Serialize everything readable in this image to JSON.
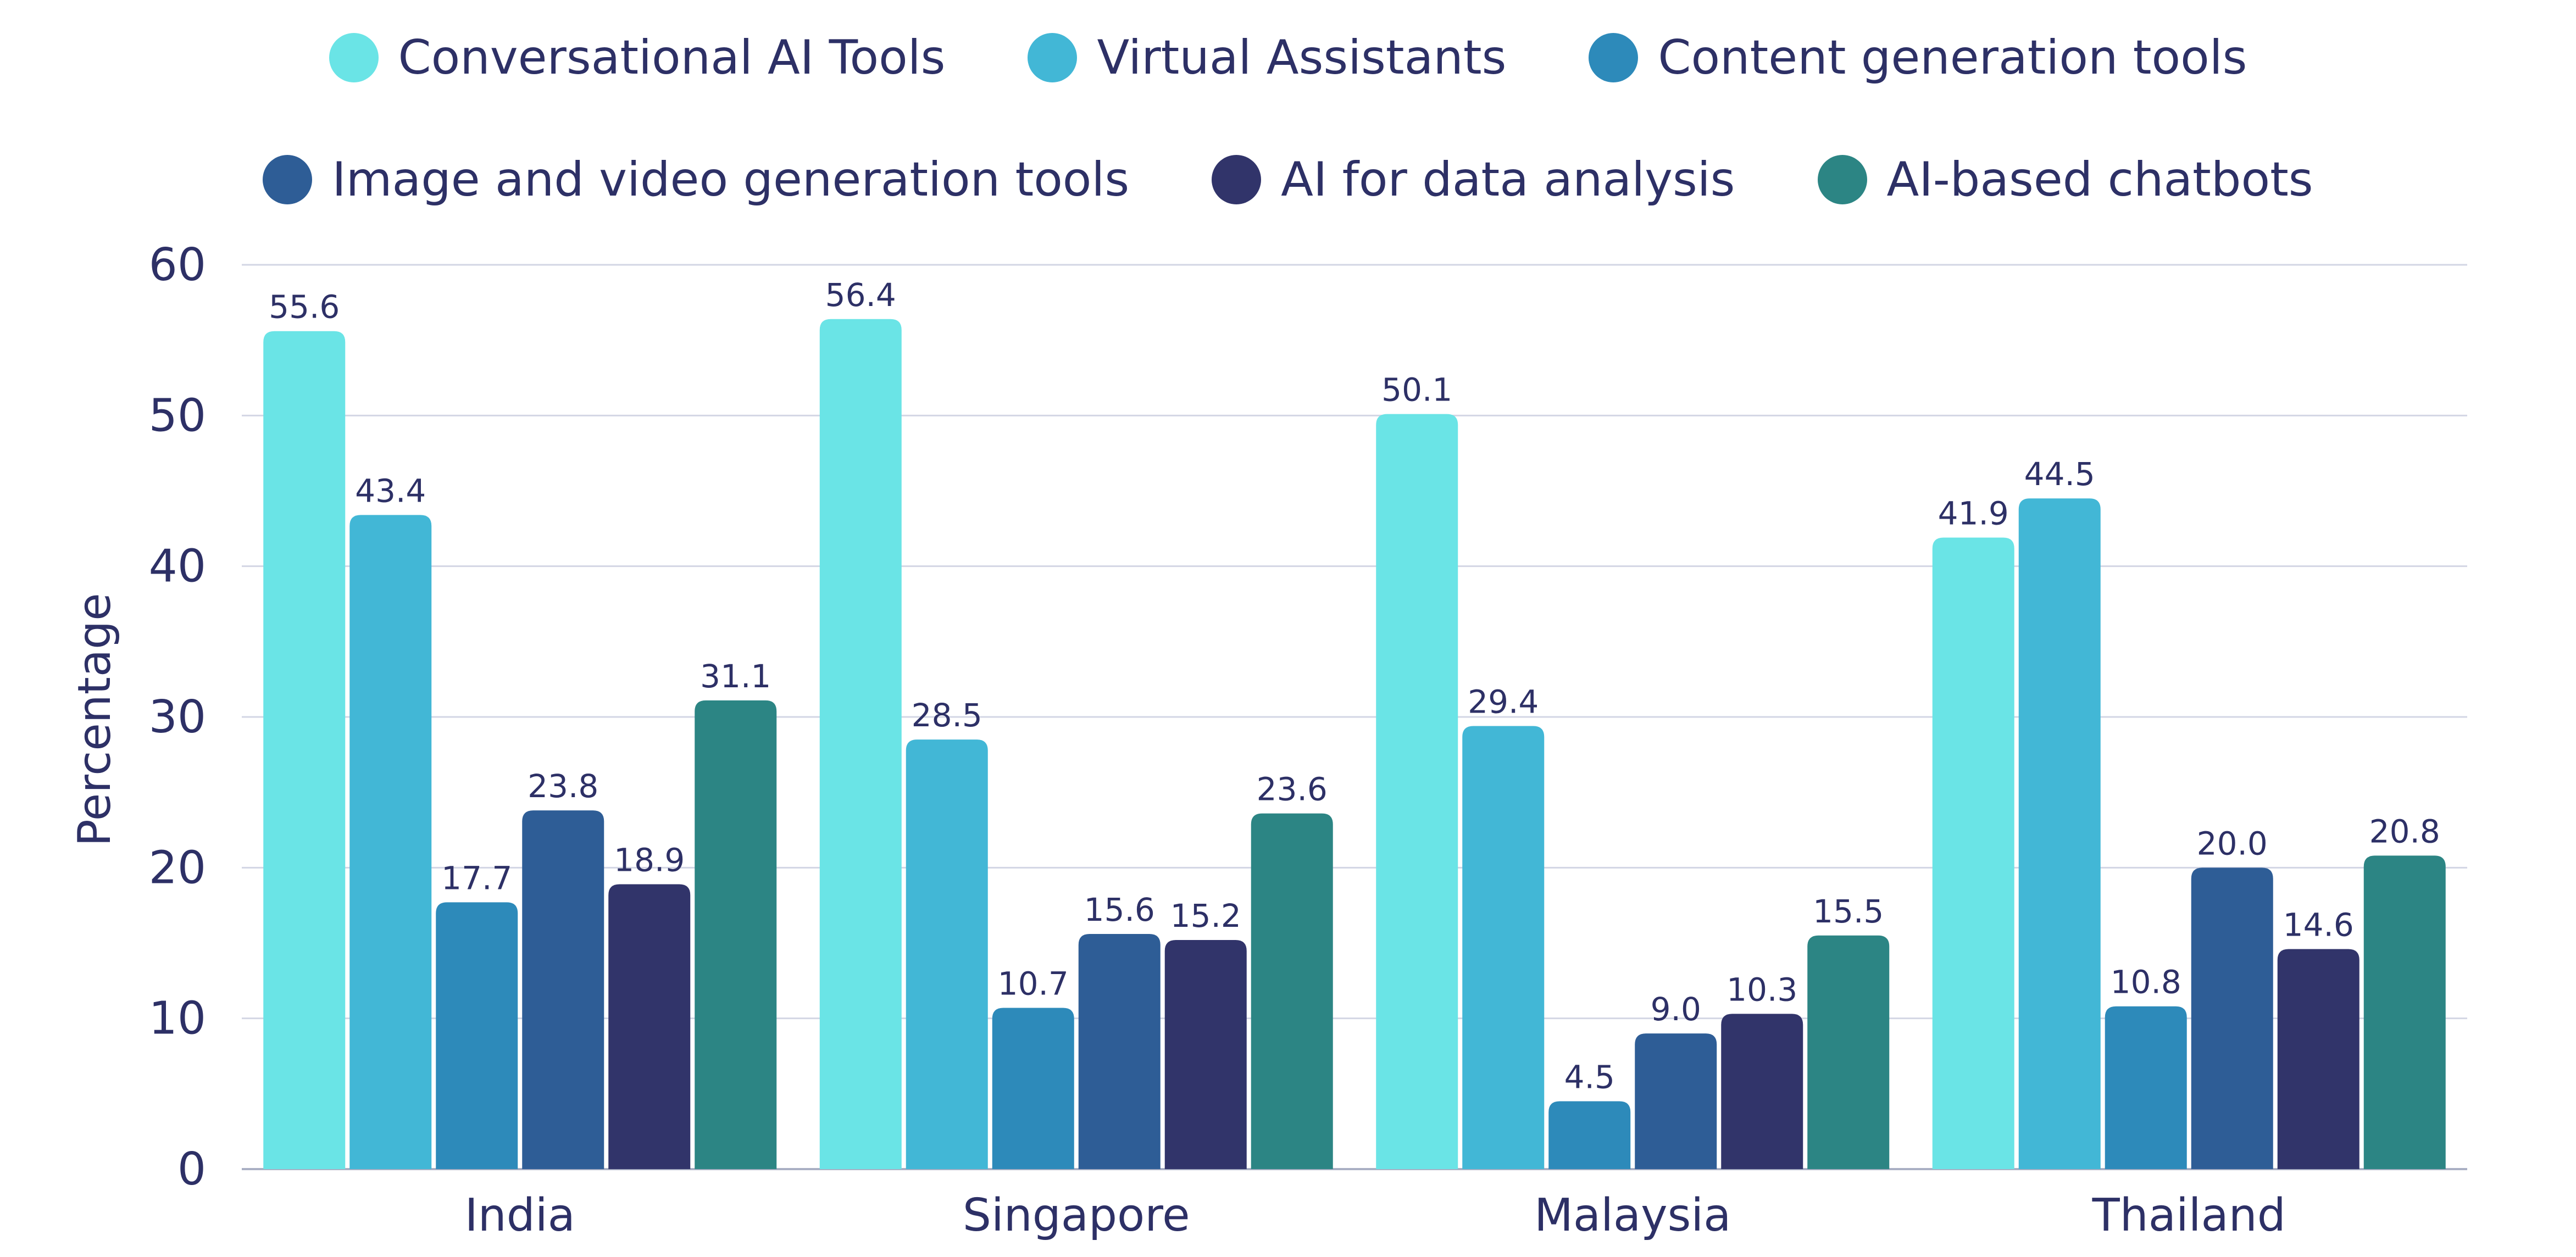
{
  "chart_data": {
    "type": "bar",
    "categories": [
      "India",
      "Singapore",
      "Malaysia",
      "Thailand"
    ],
    "series": [
      {
        "name": "Conversational AI Tools",
        "color": "#6ae4e6",
        "values": [
          55.6,
          56.4,
          50.1,
          41.9
        ]
      },
      {
        "name": "Virtual Assistants",
        "color": "#42b7d6",
        "values": [
          43.4,
          28.5,
          29.4,
          44.5
        ]
      },
      {
        "name": "Content generation tools",
        "color": "#2d8aba",
        "values": [
          17.7,
          10.7,
          4.5,
          10.8
        ]
      },
      {
        "name": "Image and video generation tools",
        "color": "#2e5d96",
        "values": [
          23.8,
          15.6,
          9.0,
          20.0
        ]
      },
      {
        "name": "AI for data analysis",
        "color": "#31346a",
        "values": [
          18.9,
          15.2,
          10.3,
          14.6
        ]
      },
      {
        "name": "AI-based chatbots",
        "color": "#2c8584",
        "values": [
          31.1,
          23.6,
          15.5,
          20.8
        ]
      }
    ],
    "ylabel": "Percentage",
    "ylim": [
      0,
      60
    ],
    "yticks": [
      "0",
      "10",
      "20",
      "30",
      "40",
      "50",
      "60"
    ],
    "grid": true,
    "legend_position": "top"
  }
}
